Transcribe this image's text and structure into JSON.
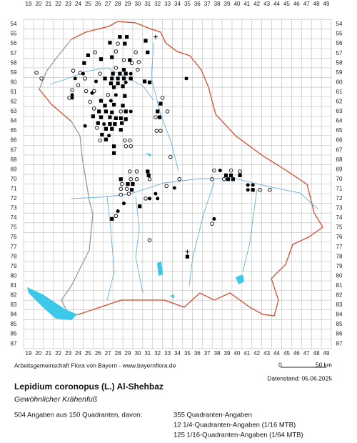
{
  "x_labels": [
    19,
    20,
    21,
    22,
    23,
    24,
    25,
    26,
    27,
    28,
    29,
    30,
    31,
    32,
    33,
    34,
    35,
    36,
    37,
    38,
    39,
    40,
    41,
    42,
    43,
    44,
    45,
    46,
    47,
    48,
    49
  ],
  "y_labels": [
    54,
    55,
    56,
    57,
    58,
    59,
    60,
    61,
    62,
    63,
    64,
    65,
    66,
    67,
    68,
    69,
    70,
    71,
    72,
    73,
    74,
    75,
    76,
    77,
    78,
    79,
    80,
    81,
    82,
    83,
    84,
    85,
    86,
    87
  ],
  "markers": [
    [
      28.2,
      55.3,
      "s"
    ],
    [
      28.9,
      55.3,
      "s"
    ],
    [
      30.8,
      55.7,
      "s"
    ],
    [
      31.8,
      55.3,
      "p"
    ],
    [
      27.2,
      55.9,
      "s"
    ],
    [
      28,
      56,
      "o"
    ],
    [
      28.7,
      56,
      "s"
    ],
    [
      27.8,
      56.8,
      "o"
    ],
    [
      29.8,
      56.9,
      "o"
    ],
    [
      31,
      56.9,
      "s"
    ],
    [
      25.7,
      56.9,
      "o"
    ],
    [
      25,
      57.2,
      "s"
    ],
    [
      26.3,
      57.6,
      "s"
    ],
    [
      27.4,
      57.4,
      "s"
    ],
    [
      28.6,
      57.7,
      "o"
    ],
    [
      29.2,
      57.7,
      "s"
    ],
    [
      30.1,
      57.9,
      "o"
    ],
    [
      24.6,
      58,
      "s"
    ],
    [
      29.4,
      58,
      "o"
    ],
    [
      27.8,
      58.5,
      "o"
    ],
    [
      28.6,
      58.7,
      "s"
    ],
    [
      30,
      58.7,
      "o"
    ],
    [
      23.5,
      58.8,
      "o"
    ],
    [
      24.2,
      59,
      "o"
    ],
    [
      24.5,
      59.1,
      "f"
    ],
    [
      26.2,
      59.1,
      "o"
    ],
    [
      27.5,
      59.1,
      "s"
    ],
    [
      28.2,
      59.1,
      "s"
    ],
    [
      28.8,
      59.1,
      "s"
    ],
    [
      29.3,
      59.1,
      "f"
    ],
    [
      19.8,
      59,
      "o"
    ],
    [
      20.3,
      59.6,
      "o"
    ],
    [
      23.7,
      59.6,
      "f"
    ],
    [
      24.7,
      59.6,
      "o"
    ],
    [
      26.7,
      59.6,
      "s"
    ],
    [
      27.4,
      59.6,
      "s"
    ],
    [
      28,
      59.6,
      "s"
    ],
    [
      28.6,
      59.6,
      "s"
    ],
    [
      29.3,
      59.6,
      "s"
    ],
    [
      30.7,
      59.9,
      "s"
    ],
    [
      31.2,
      60,
      "s"
    ],
    [
      34.9,
      59.6,
      "f"
    ],
    [
      25.8,
      59.9,
      "f"
    ],
    [
      27.3,
      60.1,
      "s"
    ],
    [
      28,
      60.1,
      "s"
    ],
    [
      28.8,
      60,
      "f"
    ],
    [
      24,
      60.3,
      "o"
    ],
    [
      27.6,
      60.5,
      "s"
    ],
    [
      28.5,
      60.4,
      "s"
    ],
    [
      23.4,
      60.8,
      "o"
    ],
    [
      24.8,
      60.9,
      "o"
    ],
    [
      25.6,
      60.9,
      "o"
    ],
    [
      23.4,
      61.3,
      "f"
    ],
    [
      23.1,
      61.6,
      "o"
    ],
    [
      23.4,
      61.6,
      "f"
    ],
    [
      25.4,
      61.1,
      "f"
    ],
    [
      27,
      61.3,
      "o"
    ],
    [
      27.8,
      61.3,
      "f"
    ],
    [
      28.7,
      61.4,
      "s"
    ],
    [
      32.5,
      61.6,
      "o"
    ],
    [
      25.2,
      62,
      "o"
    ],
    [
      26.3,
      61.9,
      "s"
    ],
    [
      27.3,
      61.9,
      "f"
    ],
    [
      26.7,
      62.4,
      "s"
    ],
    [
      27.6,
      62.3,
      "s"
    ],
    [
      28.5,
      62.4,
      "s"
    ],
    [
      32.3,
      62.2,
      "s"
    ],
    [
      25.6,
      62.7,
      "o"
    ],
    [
      26.1,
      63,
      "s"
    ],
    [
      26.8,
      63,
      "s"
    ],
    [
      27.4,
      63.1,
      "s"
    ],
    [
      28.3,
      63,
      "o"
    ],
    [
      28.8,
      63,
      "s"
    ],
    [
      29.3,
      63,
      "f"
    ],
    [
      32,
      63,
      "s"
    ],
    [
      33,
      63,
      "o"
    ],
    [
      25.5,
      63.5,
      "s"
    ],
    [
      26.3,
      63.6,
      "s"
    ],
    [
      27.2,
      63.6,
      "s"
    ],
    [
      27.8,
      63.7,
      "s"
    ],
    [
      28.3,
      63.7,
      "s"
    ],
    [
      28.8,
      63.8,
      "s"
    ],
    [
      31.8,
      63.6,
      "o"
    ],
    [
      32.2,
      63.6,
      "s"
    ],
    [
      26,
      64.2,
      "s"
    ],
    [
      26.6,
      64.3,
      "f"
    ],
    [
      27.2,
      64.3,
      "s"
    ],
    [
      27.7,
      64.3,
      "s"
    ],
    [
      28.4,
      64.2,
      "s"
    ],
    [
      24.7,
      64.5,
      "f"
    ],
    [
      25.9,
      64.7,
      "o"
    ],
    [
      26.8,
      64.8,
      "s"
    ],
    [
      27.4,
      64.8,
      "s"
    ],
    [
      28.3,
      64.9,
      "s"
    ],
    [
      31.9,
      65,
      "o"
    ],
    [
      32.3,
      65,
      "o"
    ],
    [
      26.4,
      65.4,
      "s"
    ],
    [
      27.1,
      65.5,
      "f"
    ],
    [
      26.2,
      66,
      "o"
    ],
    [
      26.8,
      65.9,
      "s"
    ],
    [
      28.7,
      66,
      "o"
    ],
    [
      29.2,
      66,
      "o"
    ],
    [
      27.6,
      66.6,
      "s"
    ],
    [
      27.6,
      67.3,
      "s"
    ],
    [
      28.8,
      66.6,
      "o"
    ],
    [
      29.3,
      66.6,
      "o"
    ],
    [
      33.3,
      67.7,
      "o"
    ],
    [
      29.2,
      69.2,
      "o"
    ],
    [
      29.9,
      69.2,
      "o"
    ],
    [
      31,
      69.2,
      "s"
    ],
    [
      37.7,
      69.1,
      "o"
    ],
    [
      38.3,
      69.1,
      "f"
    ],
    [
      39.4,
      69.1,
      "o"
    ],
    [
      40.3,
      69.2,
      "o"
    ],
    [
      31.1,
      69.6,
      "s"
    ],
    [
      38.9,
      69.6,
      "s"
    ],
    [
      39.4,
      69.6,
      "s"
    ],
    [
      40.3,
      69.6,
      "s"
    ],
    [
      28.3,
      70,
      "s"
    ],
    [
      29.3,
      70,
      "o"
    ],
    [
      29.9,
      70,
      "o"
    ],
    [
      31.2,
      70,
      "o"
    ],
    [
      34.2,
      70,
      "o"
    ],
    [
      37.5,
      70,
      "o"
    ],
    [
      38.7,
      70,
      "o"
    ],
    [
      39.1,
      70,
      "s"
    ],
    [
      39.6,
      70,
      "s"
    ],
    [
      28.4,
      70.5,
      "o"
    ],
    [
      29,
      70.5,
      "s"
    ],
    [
      29.5,
      70.5,
      "s"
    ],
    [
      32.9,
      70.7,
      "o"
    ],
    [
      33.7,
      70.9,
      "f"
    ],
    [
      41.1,
      70.6,
      "f"
    ],
    [
      41.6,
      70.6,
      "f"
    ],
    [
      28.3,
      71,
      "o"
    ],
    [
      28.9,
      71,
      "o"
    ],
    [
      29.4,
      71.1,
      "s"
    ],
    [
      41.1,
      71.1,
      "f"
    ],
    [
      41.6,
      71.1,
      "s"
    ],
    [
      42.3,
      71.1,
      "o"
    ],
    [
      43.3,
      71.1,
      "o"
    ],
    [
      28.3,
      71.6,
      "o"
    ],
    [
      29.1,
      71.5,
      "o"
    ],
    [
      31.8,
      71.5,
      "f"
    ],
    [
      30.8,
      72,
      "o"
    ],
    [
      31.2,
      72,
      "f"
    ],
    [
      32,
      72,
      "f"
    ],
    [
      28.6,
      72.5,
      "f"
    ],
    [
      30.2,
      72.8,
      "s"
    ],
    [
      28,
      73.3,
      "f"
    ],
    [
      27.8,
      73.8,
      "o"
    ],
    [
      27.4,
      74.1,
      "s"
    ],
    [
      37.7,
      74.1,
      "f"
    ],
    [
      37.5,
      74.6,
      "o"
    ],
    [
      31.2,
      76.3,
      "o"
    ],
    [
      35,
      77.5,
      "p"
    ],
    [
      35,
      78,
      "s"
    ]
  ],
  "footer": {
    "credit": "Arbeitsgemeinschaft Flora von Bayern - www.bayernflora.de",
    "scale_start": "0",
    "scale_end": "50 km",
    "date": "Datenstand: 05.06.2025"
  },
  "title": "Lepidium coronopus (L.) Al-Shehbaz",
  "subtitle": "Gewöhnlicher Krähenfuß",
  "summary": "504 Angaben aus 150 Quadranten, davon:",
  "breakdown": [
    "355 Quadranten-Angaben",
    "12 1/4-Quadranten-Angaben (1/16 MTB)",
    "125 1/16-Quadranten-Angaben (1/64 MTB)"
  ]
}
